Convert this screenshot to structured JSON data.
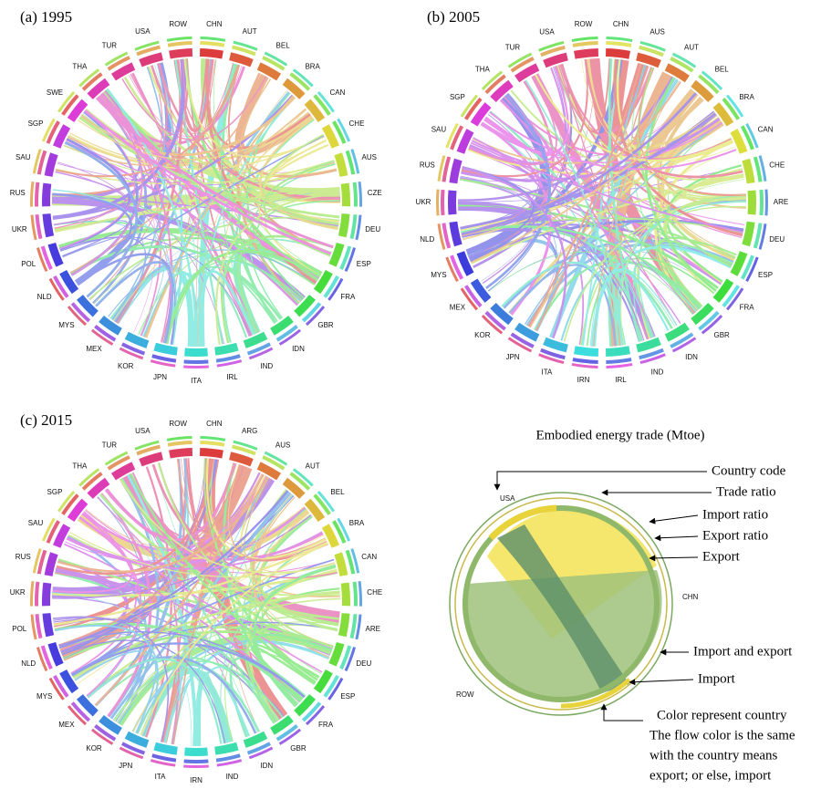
{
  "panels": [
    {
      "title": "(a) 1995",
      "countries": [
        "CHN",
        "AUT",
        "BEL",
        "BRA",
        "CAN",
        "CHE",
        "AUS",
        "CZE",
        "DEU",
        "ESP",
        "FRA",
        "GBR",
        "IDN",
        "IND",
        "IRL",
        "ITA",
        "JPN",
        "KOR",
        "MEX",
        "MYS",
        "NLD",
        "POL",
        "UKR",
        "RUS",
        "SAU",
        "SGP",
        "SWE",
        "THA",
        "TUR",
        "USA",
        "ROW"
      ]
    },
    {
      "title": "(b) 2005",
      "countries": [
        "CHN",
        "AUS",
        "AUT",
        "BEL",
        "BRA",
        "CAN",
        "CHE",
        "ARE",
        "DEU",
        "ESP",
        "FRA",
        "GBR",
        "IDN",
        "IND",
        "IRL",
        "IRN",
        "ITA",
        "JPN",
        "KOR",
        "MEX",
        "MYS",
        "NLD",
        "UKR",
        "RUS",
        "SAU",
        "SGP",
        "THA",
        "TUR",
        "USA",
        "ROW"
      ]
    },
    {
      "title": "(c) 2015",
      "countries": [
        "CHN",
        "ARG",
        "AUS",
        "AUT",
        "BEL",
        "BRA",
        "CAN",
        "CHE",
        "ARE",
        "DEU",
        "ESP",
        "FRA",
        "GBR",
        "IDN",
        "IND",
        "IRN",
        "ITA",
        "JPN",
        "KOR",
        "MEX",
        "MYS",
        "NLD",
        "POL",
        "UKR",
        "RUS",
        "SAU",
        "SGP",
        "THA",
        "TUR",
        "USA",
        "ROW"
      ]
    }
  ],
  "legend": {
    "title": "Embodied energy trade (Mtoe)",
    "countries": [
      "USA",
      "CHN",
      "ROW"
    ],
    "annotations": [
      "Country code",
      "Trade ratio",
      "Import ratio",
      "Export ratio",
      "Export",
      "Import and export",
      "Import"
    ],
    "note": [
      "Color represent country",
      "The flow color is the same",
      "with the country means",
      "export; or else, import"
    ]
  }
}
